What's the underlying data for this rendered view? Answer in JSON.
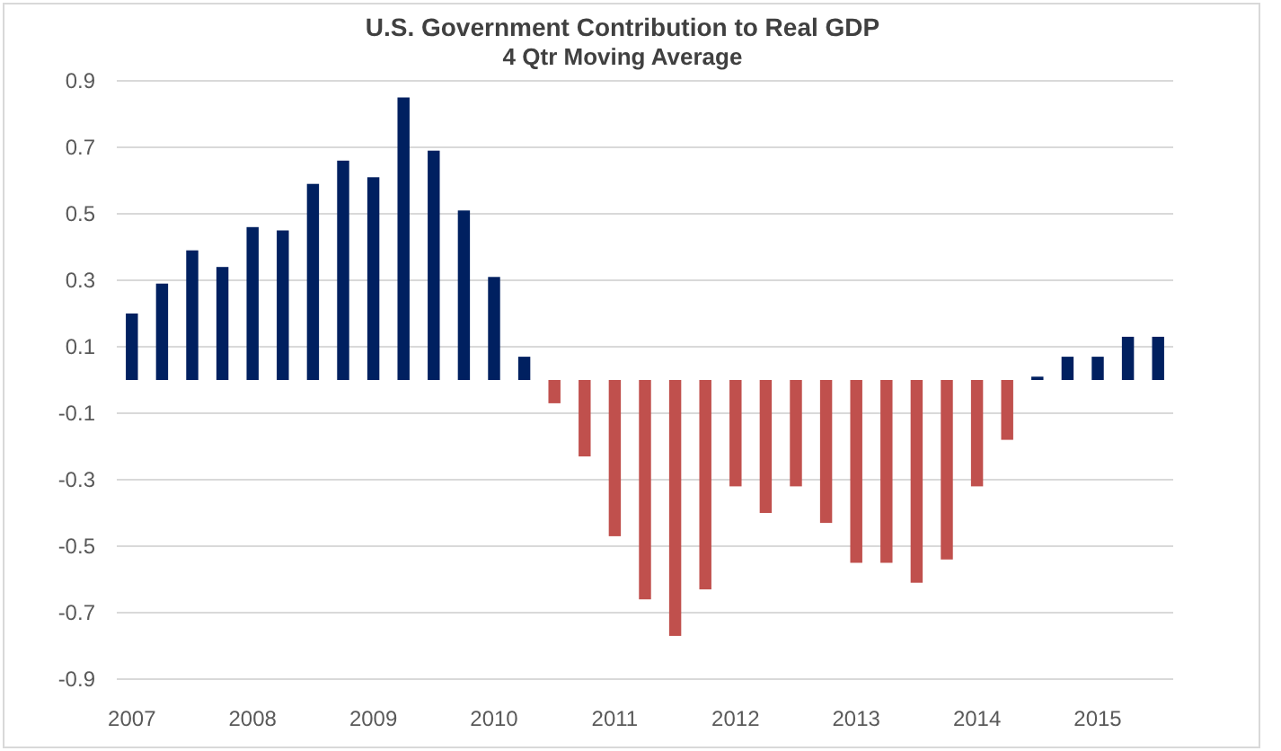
{
  "chart_data": {
    "type": "bar",
    "title": "U.S. Government Contribution to Real GDP",
    "subtitle": "4 Qtr Moving Average",
    "categories": [
      "2007",
      null,
      null,
      null,
      "2008",
      null,
      null,
      null,
      "2009",
      null,
      null,
      null,
      "2010",
      null,
      null,
      null,
      "2011",
      null,
      null,
      null,
      "2012",
      null,
      null,
      null,
      "2013",
      null,
      null,
      null,
      "2014",
      null,
      null,
      null,
      "2015",
      null,
      null
    ],
    "values": [
      0.2,
      0.29,
      0.39,
      0.34,
      0.46,
      0.45,
      0.59,
      0.66,
      0.61,
      0.85,
      0.69,
      0.51,
      0.31,
      0.07,
      -0.07,
      -0.23,
      -0.47,
      -0.66,
      -0.77,
      -0.63,
      -0.32,
      -0.4,
      -0.32,
      -0.43,
      -0.55,
      -0.55,
      -0.61,
      -0.54,
      -0.32,
      -0.18,
      0.01,
      0.07,
      0.07,
      0.13,
      0.13
    ],
    "colors": [
      "#002060",
      "#002060",
      "#002060",
      "#002060",
      "#002060",
      "#002060",
      "#002060",
      "#002060",
      "#002060",
      "#002060",
      "#002060",
      "#002060",
      "#002060",
      "#002060",
      "#c0504d",
      "#c0504d",
      "#c0504d",
      "#c0504d",
      "#c0504d",
      "#c0504d",
      "#c0504d",
      "#c0504d",
      "#c0504d",
      "#c0504d",
      "#c0504d",
      "#c0504d",
      "#c0504d",
      "#c0504d",
      "#c0504d",
      "#c0504d",
      "#002060",
      "#002060",
      "#002060",
      "#002060",
      "#002060"
    ],
    "ylim": [
      -0.9,
      0.9
    ],
    "yticks": [
      -0.9,
      -0.7,
      -0.5,
      -0.3,
      -0.1,
      0.1,
      0.3,
      0.5,
      0.7,
      0.9
    ],
    "grid": "y"
  }
}
